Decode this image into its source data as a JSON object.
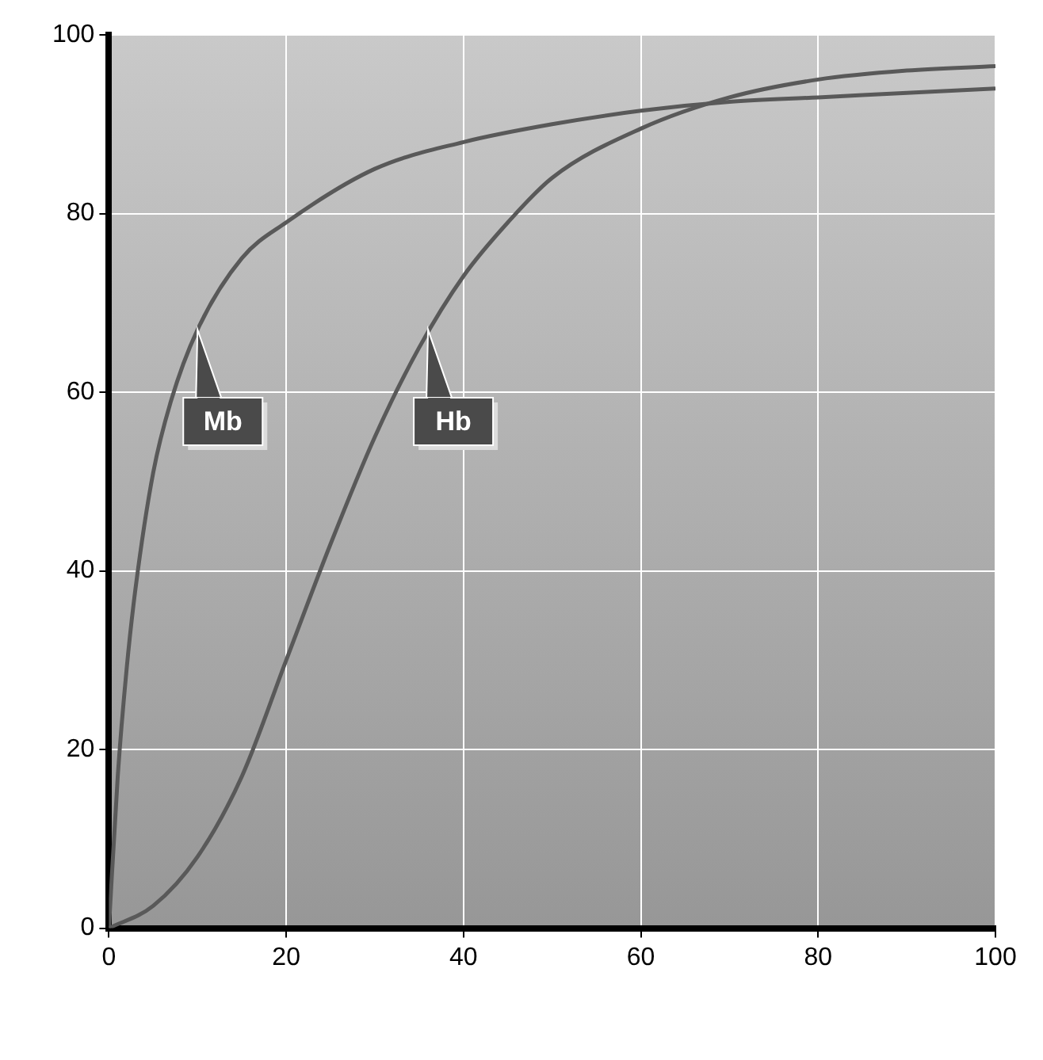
{
  "chart_data": {
    "type": "line",
    "xlim": [
      0,
      100
    ],
    "ylim": [
      0,
      100
    ],
    "xticks": [
      0,
      20,
      40,
      60,
      80,
      100
    ],
    "yticks": [
      0,
      20,
      40,
      60,
      80,
      100
    ],
    "grid": true,
    "legend": false,
    "marker": "none",
    "line_style": "solid",
    "series": [
      {
        "color": "#595959",
        "x": [
          0,
          1,
          2,
          3,
          5,
          7,
          10,
          15,
          20,
          30,
          40,
          50,
          60,
          70,
          80,
          90,
          100
        ],
        "values": [
          0,
          17,
          29,
          38,
          51,
          59,
          67,
          75,
          79,
          85,
          88,
          90,
          91.5,
          92.5,
          93,
          93.5,
          94
        ]
      },
      {
        "color": "#595959",
        "x": [
          0,
          5,
          10,
          15,
          20,
          25,
          30,
          35,
          40,
          45,
          50,
          60,
          70,
          80,
          90,
          100
        ],
        "values": [
          0,
          2.5,
          8,
          17,
          30,
          43,
          55,
          65,
          73,
          79,
          84,
          89.5,
          93,
          95,
          96,
          96.5
        ]
      }
    ],
    "annotations": [
      {
        "text": "Mb",
        "x": 10,
        "y": 67
      },
      {
        "text": "Hb",
        "x": 36,
        "y": 67
      }
    ]
  }
}
